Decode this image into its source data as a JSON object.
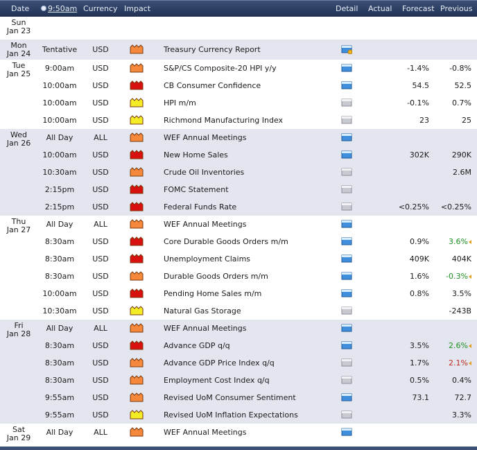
{
  "header": {
    "date": "Date",
    "time": "9:50am",
    "currency": "Currency",
    "impact": "Impact",
    "detail": "Detail",
    "actual": "Actual",
    "forecast": "Forecast",
    "previous": "Previous"
  },
  "impact_colors": {
    "high": "#d81010",
    "medium": "#f5883a",
    "low": "#f4ec24"
  },
  "days": [
    {
      "dow": "Sun",
      "date": "Jan 23",
      "events": []
    },
    {
      "dow": "Mon",
      "date": "Jan 24",
      "events": [
        {
          "time": "Tentative",
          "currency": "USD",
          "impact": "medium",
          "title": "Treasury Currency Report",
          "detail": "blue-star",
          "actual": "",
          "forecast": "",
          "previous": "",
          "prev_trend": ""
        }
      ]
    },
    {
      "dow": "Tue",
      "date": "Jan 25",
      "events": [
        {
          "time": "9:00am",
          "currency": "USD",
          "impact": "medium",
          "title": "S&P/CS Composite-20 HPI y/y",
          "detail": "blue",
          "actual": "",
          "forecast": "-1.4%",
          "previous": "-0.8%",
          "prev_trend": ""
        },
        {
          "time": "10:00am",
          "currency": "USD",
          "impact": "high",
          "title": "CB Consumer Confidence",
          "detail": "blue",
          "actual": "",
          "forecast": "54.5",
          "previous": "52.5",
          "prev_trend": ""
        },
        {
          "time": "10:00am",
          "currency": "USD",
          "impact": "low",
          "title": "HPI m/m",
          "detail": "gray",
          "actual": "",
          "forecast": "-0.1%",
          "previous": "0.7%",
          "prev_trend": ""
        },
        {
          "time": "10:00am",
          "currency": "USD",
          "impact": "low",
          "title": "Richmond Manufacturing Index",
          "detail": "gray",
          "actual": "",
          "forecast": "23",
          "previous": "25",
          "prev_trend": ""
        }
      ]
    },
    {
      "dow": "Wed",
      "date": "Jan 26",
      "events": [
        {
          "time": "All Day",
          "currency": "ALL",
          "impact": "medium",
          "title": "WEF Annual Meetings",
          "detail": "blue",
          "actual": "",
          "forecast": "",
          "previous": "",
          "prev_trend": ""
        },
        {
          "time": "10:00am",
          "currency": "USD",
          "impact": "high",
          "title": "New Home Sales",
          "detail": "blue",
          "actual": "",
          "forecast": "302K",
          "previous": "290K",
          "prev_trend": ""
        },
        {
          "time": "10:30am",
          "currency": "USD",
          "impact": "medium",
          "title": "Crude Oil Inventories",
          "detail": "gray",
          "actual": "",
          "forecast": "",
          "previous": "2.6M",
          "prev_trend": ""
        },
        {
          "time": "2:15pm",
          "currency": "USD",
          "impact": "high",
          "title": "FOMC Statement",
          "detail": "gray",
          "actual": "",
          "forecast": "",
          "previous": "",
          "prev_trend": ""
        },
        {
          "time": "2:15pm",
          "currency": "USD",
          "impact": "high",
          "title": "Federal Funds Rate",
          "detail": "gray",
          "actual": "",
          "forecast": "<0.25%",
          "previous": "<0.25%",
          "prev_trend": ""
        }
      ]
    },
    {
      "dow": "Thu",
      "date": "Jan 27",
      "events": [
        {
          "time": "All Day",
          "currency": "ALL",
          "impact": "medium",
          "title": "WEF Annual Meetings",
          "detail": "blue",
          "actual": "",
          "forecast": "",
          "previous": "",
          "prev_trend": ""
        },
        {
          "time": "8:30am",
          "currency": "USD",
          "impact": "high",
          "title": "Core Durable Goods Orders m/m",
          "detail": "blue",
          "actual": "",
          "forecast": "0.9%",
          "previous": "3.6%",
          "prev_trend": "up"
        },
        {
          "time": "8:30am",
          "currency": "USD",
          "impact": "high",
          "title": "Unemployment Claims",
          "detail": "blue",
          "actual": "",
          "forecast": "409K",
          "previous": "404K",
          "prev_trend": ""
        },
        {
          "time": "8:30am",
          "currency": "USD",
          "impact": "medium",
          "title": "Durable Goods Orders m/m",
          "detail": "blue",
          "actual": "",
          "forecast": "1.6%",
          "previous": "-0.3%",
          "prev_trend": "up"
        },
        {
          "time": "10:00am",
          "currency": "USD",
          "impact": "high",
          "title": "Pending Home Sales m/m",
          "detail": "blue",
          "actual": "",
          "forecast": "0.8%",
          "previous": "3.5%",
          "prev_trend": ""
        },
        {
          "time": "10:30am",
          "currency": "USD",
          "impact": "low",
          "title": "Natural Gas Storage",
          "detail": "gray",
          "actual": "",
          "forecast": "",
          "previous": "-243B",
          "prev_trend": ""
        }
      ]
    },
    {
      "dow": "Fri",
      "date": "Jan 28",
      "events": [
        {
          "time": "All Day",
          "currency": "ALL",
          "impact": "medium",
          "title": "WEF Annual Meetings",
          "detail": "blue",
          "actual": "",
          "forecast": "",
          "previous": "",
          "prev_trend": ""
        },
        {
          "time": "8:30am",
          "currency": "USD",
          "impact": "high",
          "title": "Advance GDP q/q",
          "detail": "blue",
          "actual": "",
          "forecast": "3.5%",
          "previous": "2.6%",
          "prev_trend": "up"
        },
        {
          "time": "8:30am",
          "currency": "USD",
          "impact": "medium",
          "title": "Advance GDP Price Index q/q",
          "detail": "gray",
          "actual": "",
          "forecast": "1.7%",
          "previous": "2.1%",
          "prev_trend": "down"
        },
        {
          "time": "8:30am",
          "currency": "USD",
          "impact": "medium",
          "title": "Employment Cost Index q/q",
          "detail": "gray",
          "actual": "",
          "forecast": "0.5%",
          "previous": "0.4%",
          "prev_trend": ""
        },
        {
          "time": "9:55am",
          "currency": "USD",
          "impact": "medium",
          "title": "Revised UoM Consumer Sentiment",
          "detail": "blue",
          "actual": "",
          "forecast": "73.1",
          "previous": "72.7",
          "prev_trend": ""
        },
        {
          "time": "9:55am",
          "currency": "USD",
          "impact": "low",
          "title": "Revised UoM Inflation Expectations",
          "detail": "gray",
          "actual": "",
          "forecast": "",
          "previous": "3.3%",
          "prev_trend": ""
        }
      ]
    },
    {
      "dow": "Sat",
      "date": "Jan 29",
      "events": [
        {
          "time": "All Day",
          "currency": "ALL",
          "impact": "medium",
          "title": "WEF Annual Meetings",
          "detail": "blue",
          "actual": "",
          "forecast": "",
          "previous": "",
          "prev_trend": ""
        }
      ]
    }
  ]
}
